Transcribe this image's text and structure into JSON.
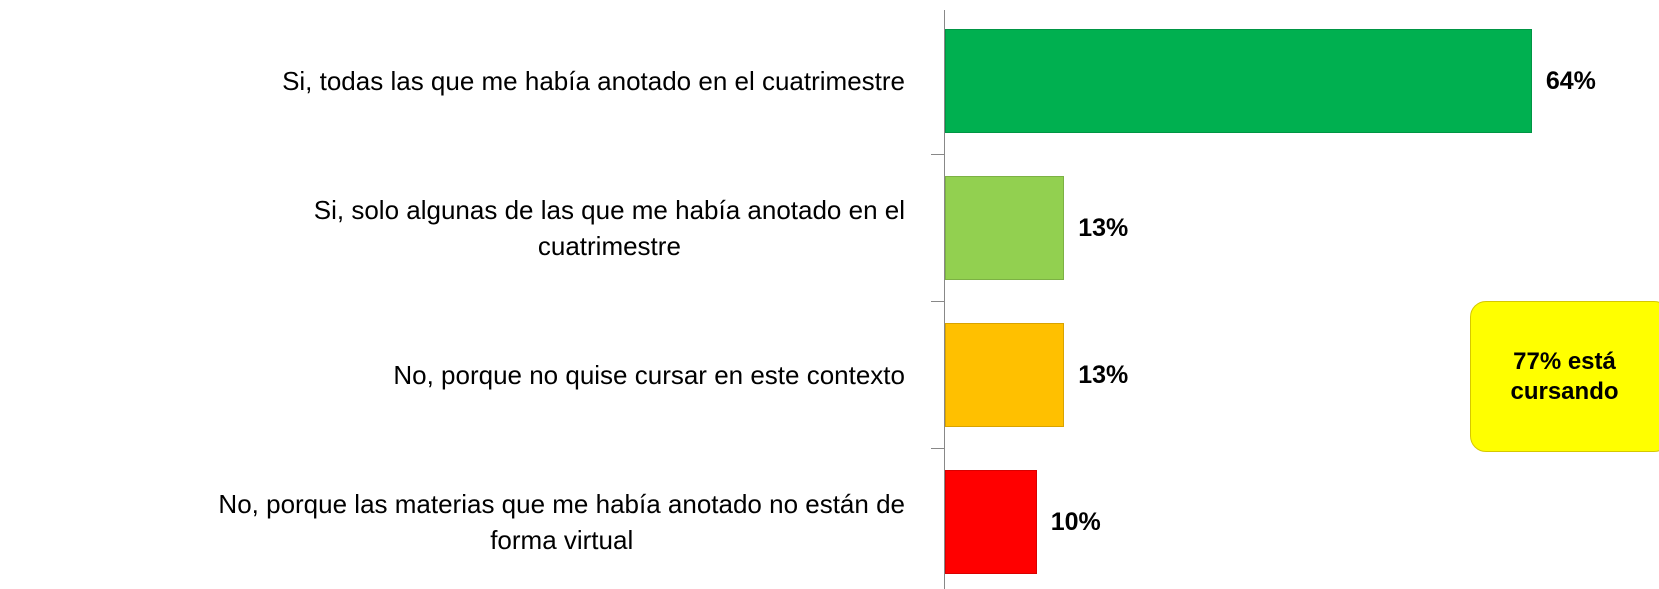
{
  "chart_data": {
    "type": "bar",
    "orientation": "horizontal",
    "categories": [
      [
        "Si, todas las que me había anotado en el cuatrimestre"
      ],
      [
        "Si, solo algunas de las que me había anotado en el",
        "cuatrimestre"
      ],
      [
        "No, porque no quise cursar en este contexto"
      ],
      [
        "No, porque las materias que me había anotado no están de",
        "forma virtual"
      ]
    ],
    "values": [
      64,
      13,
      13,
      10
    ],
    "value_labels": [
      "64%",
      "13%",
      "13%",
      "10%"
    ],
    "colors": [
      "#00b050",
      "#92d050",
      "#ffc000",
      "#ff0000"
    ],
    "annotation": [
      "77% está",
      "cursando"
    ]
  }
}
